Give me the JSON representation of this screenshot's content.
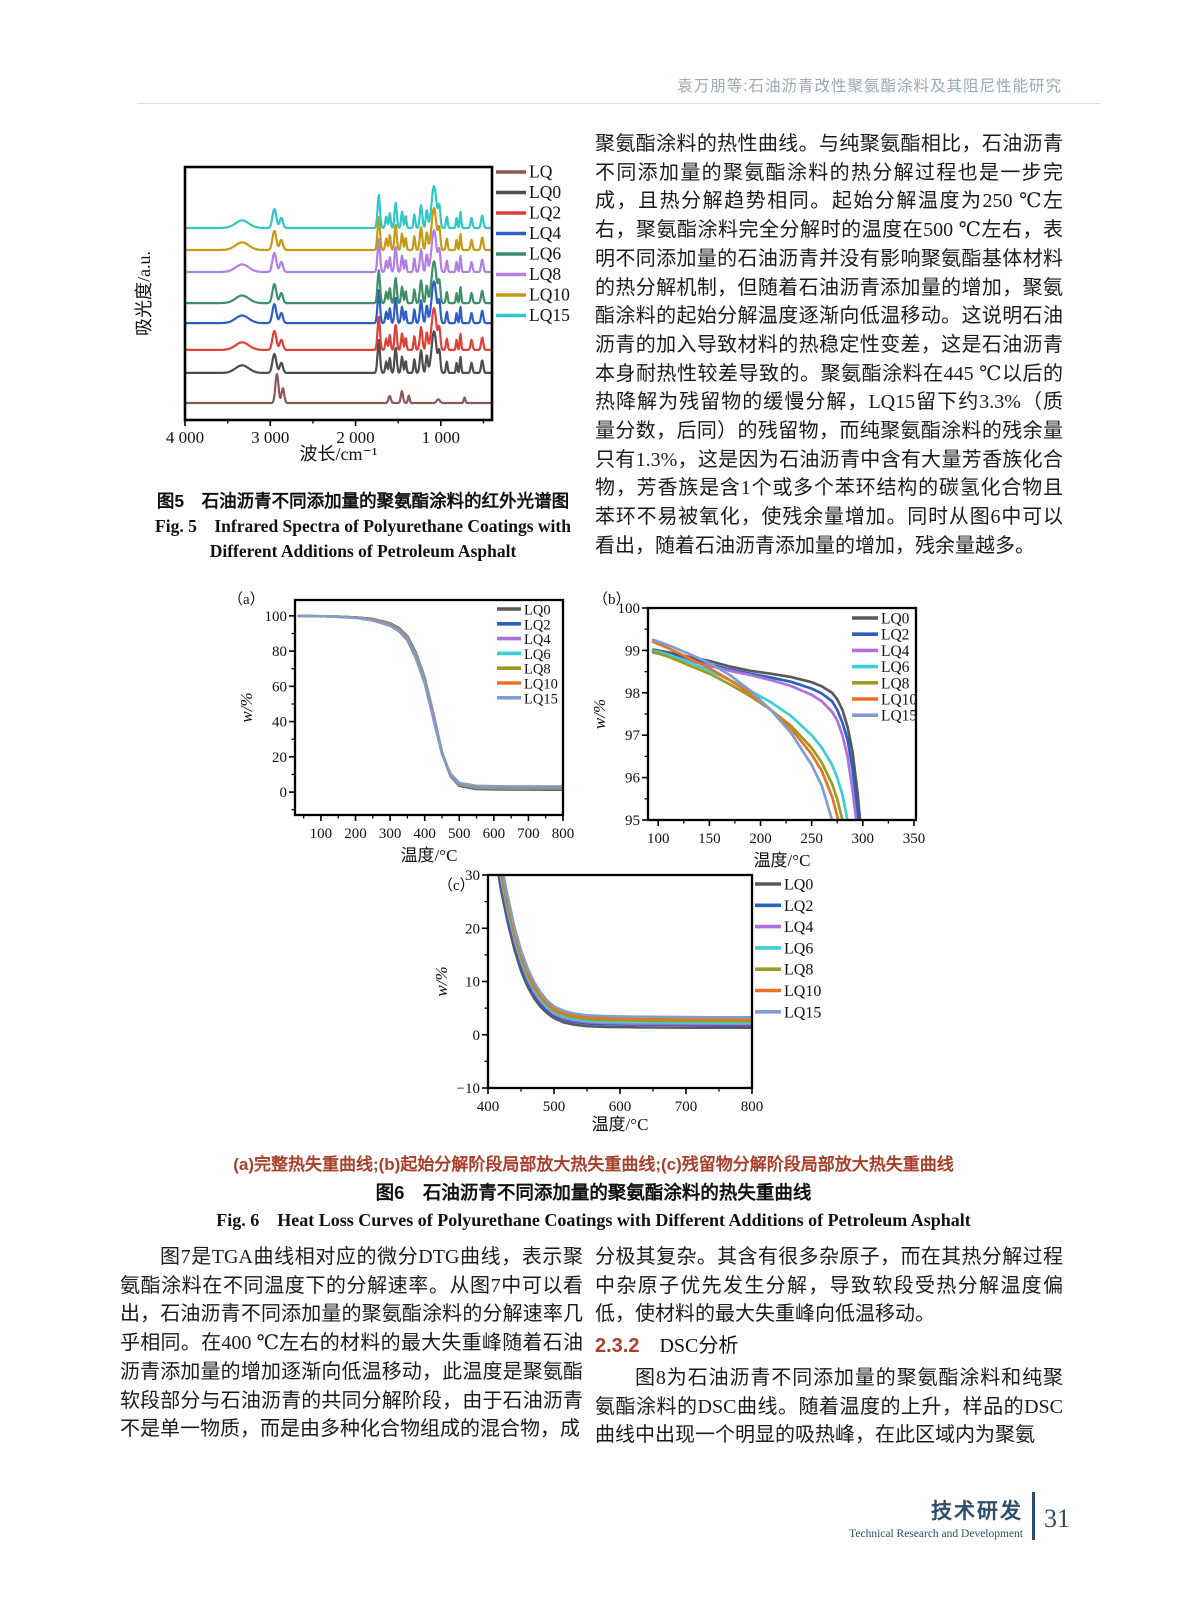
{
  "header": {
    "running_title": "袁万朋等:石油沥青改性聚氨酯涂料及其阻尼性能研究"
  },
  "figure5": {
    "caption_zh": "图5　石油沥青不同添加量的聚氨酯涂料的红外光谱图",
    "caption_en_line1": "Fig. 5　Infrared Spectra of Polyurethane Coatings with",
    "caption_en_line2": "Different Additions of Petroleum Asphalt"
  },
  "figure6": {
    "subcaption": "(a)完整热失重曲线;(b)起始分解阶段局部放大热失重曲线;(c)残留物分解阶段局部放大热失重曲线",
    "caption_zh": "图6　石油沥青不同添加量的聚氨酯涂料的热失重曲线",
    "caption_en": "Fig. 6　Heat Loss Curves of Polyurethane Coatings with Different Additions of Petroleum Asphalt"
  },
  "body": {
    "right_top": "聚氨酯涂料的热性曲线。与纯聚氨酯相比，石油沥青不同添加量的聚氨酯涂料的热分解过程也是一步完成，且热分解趋势相同。起始分解温度为250 ℃左右，聚氨酯涂料完全分解时的温度在500 ℃左右，表明不同添加量的石油沥青并没有影响聚氨酯基体材料的热分解机制，但随着石油沥青添加量的增加，聚氨酯涂料的起始分解温度逐渐向低温移动。这说明石油沥青的加入导致材料的热稳定性变差，这是石油沥青本身耐热性较差导致的。聚氨酯涂料在445 ℃以后的热降解为残留物的缓慢分解，LQ15留下约3.3%（质量分数，后同）的残留物，而纯聚氨酯涂料的残余量只有1.3%，这是因为石油沥青中含有大量芳香族化合物，芳香族是含1个或多个苯环结构的碳氢化合物且苯环不易被氧化，使残余量增加。同时从图6中可以看出，随着石油沥青添加量的增加，残余量越多。",
    "left_bottom": "图7是TGA曲线相对应的微分DTG曲线，表示聚氨酯涂料在不同温度下的分解速率。从图7中可以看出，石油沥青不同添加量的聚氨酯涂料的分解速率几乎相同。在400 ℃左右的材料的最大失重峰随着石油沥青添加量的增加逐渐向低温移动，此温度是聚氨酯软段部分与石油沥青的共同分解阶段，由于石油沥青不是单一物质，而是由多种化合物组成的混合物，成",
    "right_bottom_1": "分极其复杂。其含有很多杂原子，而在其热分解过程中杂原子优先发生分解，导致软段受热分解温度偏低，使材料的最大失重峰向低温移动。",
    "section_number": "2.3.2",
    "section_title": "DSC分析",
    "right_bottom_2": "图8为石油沥青不同添加量的聚氨酯涂料和纯聚氨酯涂料的DSC曲线。随着温度的上升，样品的DSC曲线中出现一个明显的吸热峰，在此区域内为聚氨"
  },
  "footer": {
    "section_zh": "技术研发",
    "section_en": "Technical Research and Development",
    "page_number": "31"
  },
  "colors": {
    "accent_red": "#a8402c",
    "footer_blue": "#2f4d6b",
    "header_gray": "#9aa8b5"
  },
  "chart_data": [
    {
      "id": "figure5-ir-spectra",
      "type": "line",
      "title": "",
      "xlabel": "波长/cm⁻¹",
      "ylabel": "吸光度/a.u.",
      "xlim": [
        4000,
        400
      ],
      "ylim": [
        0,
        1
      ],
      "x_ticks": [
        4000,
        3000,
        2000,
        1000
      ],
      "x_tick_labels": [
        "4 000",
        "3 000",
        "2 000",
        "1 000"
      ],
      "x_minor": 500,
      "tick_font": 17,
      "label_font": 18,
      "legend_font": 17.5,
      "legend_line": 30,
      "line_width": 2.2,
      "ylabel_off": 35,
      "xlabel_off": 40,
      "frame_width": 2.6,
      "legend_pos": "outside-right",
      "grid": false,
      "shared_peaks": [
        [
          3330,
          0.03,
          110
        ],
        [
          2952,
          0.075,
          32
        ],
        [
          2870,
          0.04,
          26
        ],
        [
          1728,
          0.13,
          20
        ],
        [
          1640,
          0.045,
          16
        ],
        [
          1598,
          0.06,
          14
        ],
        [
          1530,
          0.1,
          18
        ],
        [
          1455,
          0.065,
          16
        ],
        [
          1412,
          0.05,
          13
        ],
        [
          1310,
          0.055,
          14
        ],
        [
          1232,
          0.09,
          20
        ],
        [
          1165,
          0.07,
          16
        ],
        [
          1080,
          0.165,
          40
        ],
        [
          1018,
          0.08,
          18
        ],
        [
          930,
          0.045,
          14
        ],
        [
          815,
          0.04,
          12
        ],
        [
          770,
          0.065,
          12
        ],
        [
          640,
          0.04,
          16
        ],
        [
          515,
          0.05,
          18
        ]
      ],
      "series": [
        {
          "name": "LQ",
          "color": "#8a5a5a",
          "offset": 0.067,
          "peaks": [
            [
              2922,
              0.115,
              26
            ],
            [
              2852,
              0.06,
              22
            ],
            [
              1600,
              0.028,
              20
            ],
            [
              1456,
              0.048,
              18
            ],
            [
              1376,
              0.03,
              14
            ],
            [
              1030,
              0.015,
              26
            ],
            [
              722,
              0.022,
              14
            ]
          ]
        },
        {
          "name": "LQ0",
          "color": "#4d4d4d",
          "offset": 0.186,
          "peaks": "shared"
        },
        {
          "name": "LQ2",
          "color": "#e04038",
          "offset": 0.277,
          "peaks": "shared"
        },
        {
          "name": "LQ4",
          "color": "#2e5ec4",
          "offset": 0.383,
          "peaks": "shared"
        },
        {
          "name": "LQ6",
          "color": "#3d8f68",
          "offset": 0.462,
          "peaks": "shared"
        },
        {
          "name": "LQ8",
          "color": "#b27fe6",
          "offset": 0.585,
          "peaks": "shared"
        },
        {
          "name": "LQ10",
          "color": "#c59a15",
          "offset": 0.672,
          "peaks": "shared"
        },
        {
          "name": "LQ15",
          "color": "#31c7c7",
          "offset": 0.759,
          "peaks": "shared"
        }
      ]
    },
    {
      "id": "figure6a-tga-full",
      "type": "line",
      "panel_label": "（a）",
      "xlabel": "温度/°C",
      "ylabel": "w/%",
      "ylabel_italic": true,
      "xlim": [
        25,
        800
      ],
      "ylim": [
        -13,
        109
      ],
      "x_ticks": [
        100,
        200,
        300,
        400,
        500,
        600,
        700,
        800
      ],
      "x_minor": 50,
      "y_ticks": [
        0,
        20,
        40,
        60,
        80,
        100
      ],
      "y_minor": 10,
      "tick_font": 15,
      "label_font": 17,
      "legend_font": 14.5,
      "legend_line": 24,
      "line_width": 2.4,
      "ylabel_off": 43,
      "xlabel_off": 46,
      "frame_width": 2.3,
      "legend_pos": "inside-top-right",
      "grid": false,
      "x": [
        35,
        100,
        150,
        200,
        250,
        300,
        325,
        350,
        375,
        400,
        425,
        450,
        475,
        500,
        550,
        600,
        650,
        700,
        750,
        800
      ],
      "series": [
        {
          "name": "LQ0",
          "color": "#595959",
          "values": [
            99.9,
            99.8,
            99.6,
            99.2,
            98.3,
            95.8,
            93.2,
            88.5,
            79,
            65,
            44,
            22,
            9,
            3.5,
            1.7,
            1.5,
            1.4,
            1.4,
            1.3,
            1.3
          ]
        },
        {
          "name": "LQ2",
          "color": "#2b5fc2",
          "values": [
            99.9,
            99.8,
            99.6,
            99.2,
            98.2,
            95.6,
            93.0,
            88.0,
            78,
            64,
            43,
            22,
            9,
            3.8,
            2.1,
            1.9,
            1.8,
            1.8,
            1.8,
            1.8
          ]
        },
        {
          "name": "LQ4",
          "color": "#b070d8",
          "values": [
            99.9,
            99.8,
            99.5,
            99.1,
            98.1,
            95.4,
            92.8,
            88.0,
            78.5,
            65,
            45,
            23,
            9.5,
            4.0,
            2.3,
            2.1,
            2.0,
            2.0,
            2.0,
            2.0
          ]
        },
        {
          "name": "LQ6",
          "color": "#3ecfd4",
          "values": [
            99.9,
            99.8,
            99.5,
            99.0,
            97.9,
            95.2,
            92.5,
            87.5,
            77.5,
            63.5,
            43,
            22,
            9.5,
            4.2,
            2.5,
            2.3,
            2.2,
            2.2,
            2.2,
            2.2
          ]
        },
        {
          "name": "LQ8",
          "color": "#9c9b23",
          "values": [
            99.9,
            99.8,
            99.5,
            99.0,
            97.8,
            95.0,
            92.2,
            87.0,
            77,
            63,
            42.5,
            22,
            10,
            4.5,
            2.8,
            2.6,
            2.5,
            2.5,
            2.5,
            2.5
          ]
        },
        {
          "name": "LQ10",
          "color": "#eb7125",
          "values": [
            99.9,
            99.8,
            99.4,
            98.9,
            97.6,
            94.7,
            91.8,
            86.5,
            76,
            62,
            42,
            21.5,
            10,
            4.8,
            3.2,
            3.0,
            2.9,
            2.9,
            2.9,
            2.9
          ]
        },
        {
          "name": "LQ15",
          "color": "#7d9fd0",
          "values": [
            99.9,
            99.8,
            99.4,
            98.8,
            97.3,
            94.3,
            91.3,
            86.0,
            75.5,
            61.5,
            41.5,
            21.5,
            10.5,
            5.2,
            3.6,
            3.4,
            3.3,
            3.3,
            3.3,
            3.3
          ]
        }
      ]
    },
    {
      "id": "figure6b-tga-onset",
      "type": "line",
      "panel_label": "（b）",
      "xlabel": "温度/°C",
      "ylabel": "w/%",
      "ylabel_italic": true,
      "xlim": [
        90,
        352
      ],
      "ylim": [
        95,
        100
      ],
      "x_ticks": [
        100,
        150,
        200,
        250,
        300,
        350
      ],
      "x_minor": 25,
      "y_ticks": [
        95,
        96,
        97,
        98,
        99,
        100
      ],
      "y_minor": 0.5,
      "tick_font": 15,
      "label_font": 17,
      "legend_font": 15.5,
      "legend_line": 26,
      "line_width": 2.7,
      "ylabel_off": 43,
      "xlabel_off": 46,
      "frame_width": 2.3,
      "legend_pos": "inside-top-right",
      "grid": false,
      "x": [
        95,
        110,
        130,
        150,
        170,
        190,
        210,
        230,
        250,
        260,
        270,
        275,
        280,
        285,
        290,
        295,
        300,
        305
      ],
      "series": [
        {
          "name": "LQ0",
          "color": "#595959",
          "values": [
            99.02,
            98.95,
            98.85,
            98.75,
            98.62,
            98.52,
            98.45,
            98.37,
            98.25,
            98.15,
            98.0,
            97.85,
            97.6,
            97.2,
            96.6,
            95.6,
            94.3,
            93.0
          ]
        },
        {
          "name": "LQ2",
          "color": "#2b5fc2",
          "values": [
            99.0,
            98.92,
            98.8,
            98.68,
            98.55,
            98.45,
            98.36,
            98.26,
            98.1,
            97.98,
            97.8,
            97.6,
            97.3,
            96.9,
            96.2,
            95.2,
            94.0,
            92.8
          ]
        },
        {
          "name": "LQ4",
          "color": "#b070d8",
          "values": [
            98.95,
            98.88,
            98.76,
            98.64,
            98.52,
            98.42,
            98.3,
            98.16,
            97.95,
            97.8,
            97.55,
            97.35,
            97.0,
            96.5,
            95.7,
            94.7,
            93.5,
            92.3
          ]
        },
        {
          "name": "LQ6",
          "color": "#3ecfd4",
          "values": [
            99.0,
            98.9,
            98.72,
            98.52,
            98.3,
            98.05,
            97.78,
            97.45,
            97.0,
            96.7,
            96.3,
            96.0,
            95.6,
            95.0,
            94.2,
            93.2,
            92.2,
            91.2
          ]
        },
        {
          "name": "LQ8",
          "color": "#9c9b23",
          "values": [
            98.97,
            98.85,
            98.65,
            98.45,
            98.2,
            97.92,
            97.6,
            97.22,
            96.7,
            96.35,
            95.85,
            95.5,
            95.0,
            94.3,
            93.4,
            92.4,
            91.4,
            90.4
          ]
        },
        {
          "name": "LQ10",
          "color": "#eb7125",
          "values": [
            99.2,
            99.05,
            98.82,
            98.58,
            98.3,
            97.98,
            97.6,
            97.15,
            96.55,
            96.15,
            95.55,
            95.1,
            94.5,
            93.7,
            92.7,
            91.7,
            90.7,
            89.7
          ]
        },
        {
          "name": "LQ15",
          "color": "#7d9fd0",
          "values": [
            99.25,
            99.12,
            98.92,
            98.7,
            98.42,
            98.05,
            97.6,
            97.05,
            96.3,
            95.8,
            95.0,
            94.4,
            93.6,
            92.7,
            91.7,
            90.7,
            89.7,
            88.7
          ]
        }
      ]
    },
    {
      "id": "figure6c-tga-residue",
      "type": "line",
      "panel_label": "（c）",
      "xlabel": "温度/°C",
      "ylabel": "w/%",
      "ylabel_italic": true,
      "xlim": [
        400,
        800
      ],
      "ylim": [
        -10,
        30
      ],
      "x_ticks": [
        400,
        500,
        600,
        700,
        800
      ],
      "x_minor": 50,
      "y_ticks": [
        -10,
        0,
        10,
        20,
        30
      ],
      "y_tick_labels": [
        "−10",
        "0",
        "10",
        "20",
        "30"
      ],
      "y_minor": 5,
      "tick_font": 15,
      "label_font": 17,
      "legend_font": 16,
      "legend_line": 26,
      "line_width": 2.5,
      "ylabel_off": 41,
      "xlabel_off": 42,
      "frame_width": 2.3,
      "legend_pos": "outside-right",
      "grid": false,
      "x": [
        413,
        420,
        430,
        440,
        450,
        460,
        470,
        480,
        490,
        500,
        515,
        530,
        550,
        580,
        620,
        680,
        740,
        800
      ],
      "series": [
        {
          "name": "LQ0",
          "color": "#595959",
          "values": [
            32,
            27,
            21,
            16,
            12,
            9,
            6.8,
            5.2,
            4.0,
            3.1,
            2.3,
            1.9,
            1.6,
            1.45,
            1.4,
            1.35,
            1.3,
            1.3
          ]
        },
        {
          "name": "LQ2",
          "color": "#2b5fc2",
          "values": [
            33,
            28,
            22,
            17,
            13,
            9.8,
            7.5,
            5.8,
            4.5,
            3.6,
            2.8,
            2.4,
            2.1,
            1.95,
            1.9,
            1.85,
            1.8,
            1.8
          ]
        },
        {
          "name": "LQ4",
          "color": "#b070d8",
          "values": [
            34,
            29,
            23,
            17.8,
            13.6,
            10.4,
            8.0,
            6.2,
            4.9,
            3.9,
            3.1,
            2.7,
            2.35,
            2.2,
            2.1,
            2.05,
            2.0,
            2.0
          ]
        },
        {
          "name": "LQ6",
          "color": "#3ecfd4",
          "values": [
            34.5,
            29.5,
            23.5,
            18.3,
            14.1,
            10.9,
            8.4,
            6.6,
            5.2,
            4.2,
            3.4,
            2.95,
            2.6,
            2.45,
            2.35,
            2.3,
            2.25,
            2.2
          ]
        },
        {
          "name": "LQ8",
          "color": "#9c9b23",
          "values": [
            35,
            30,
            24,
            18.8,
            14.6,
            11.3,
            8.8,
            7.0,
            5.6,
            4.5,
            3.7,
            3.25,
            2.9,
            2.75,
            2.65,
            2.6,
            2.55,
            2.5
          ]
        },
        {
          "name": "LQ10",
          "color": "#eb7125",
          "values": [
            36,
            31,
            25,
            19.5,
            15.2,
            11.9,
            9.3,
            7.4,
            6.0,
            4.9,
            4.1,
            3.6,
            3.3,
            3.1,
            3.0,
            2.95,
            2.95,
            2.9
          ]
        },
        {
          "name": "LQ15",
          "color": "#7d9fd0",
          "values": [
            37,
            32,
            26,
            20.3,
            15.9,
            12.5,
            9.9,
            7.9,
            6.4,
            5.3,
            4.5,
            4.0,
            3.65,
            3.5,
            3.4,
            3.35,
            3.3,
            3.3
          ]
        }
      ]
    }
  ]
}
